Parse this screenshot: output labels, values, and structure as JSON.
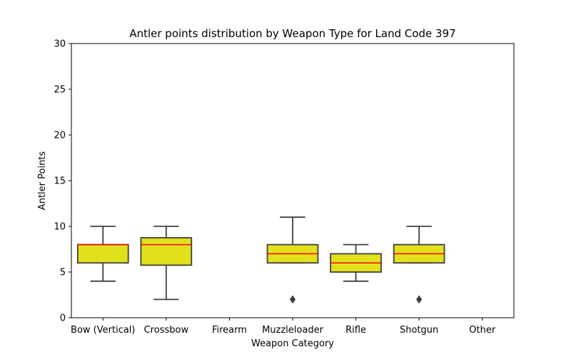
{
  "chart_data": {
    "type": "box",
    "title": "Antler points distribution by Weapon Type for Land Code 397",
    "xlabel": "Weapon Category",
    "ylabel": "Antler Points",
    "ylim": [
      0,
      30
    ],
    "yticks": [
      "0",
      "5",
      "10",
      "15",
      "20",
      "25",
      "30"
    ],
    "categories": [
      "Bow (Vertical)",
      "Crossbow",
      "Firearm",
      "Muzzleloader",
      "Rifle",
      "Shotgun",
      "Other"
    ],
    "boxes": [
      {
        "category": "Bow (Vertical)",
        "whisker_low": 4,
        "q1": 6,
        "median": 8,
        "q3": 8,
        "whisker_high": 10,
        "outliers": []
      },
      {
        "category": "Crossbow",
        "whisker_low": 2,
        "q1": 5.75,
        "median": 8,
        "q3": 8.75,
        "whisker_high": 10,
        "outliers": []
      },
      {
        "category": "Firearm",
        "empty": true
      },
      {
        "category": "Muzzleloader",
        "whisker_low": 6,
        "q1": 6,
        "median": 7,
        "q3": 8,
        "whisker_high": 11,
        "outliers": [
          2
        ]
      },
      {
        "category": "Rifle",
        "whisker_low": 4,
        "q1": 5,
        "median": 6,
        "q3": 7,
        "whisker_high": 8,
        "outliers": []
      },
      {
        "category": "Shotgun",
        "whisker_low": 6,
        "q1": 6,
        "median": 7,
        "q3": 8,
        "whisker_high": 10,
        "outliers": [
          2
        ]
      },
      {
        "category": "Other",
        "empty": true
      }
    ],
    "colors": {
      "box_fill": "#e1e11c",
      "box_edge": "#3f3f3f",
      "median": "#ff0000",
      "whisker": "#3f3f3f",
      "outlier": "#3f3f3f"
    },
    "grid": false,
    "legend": "none"
  }
}
